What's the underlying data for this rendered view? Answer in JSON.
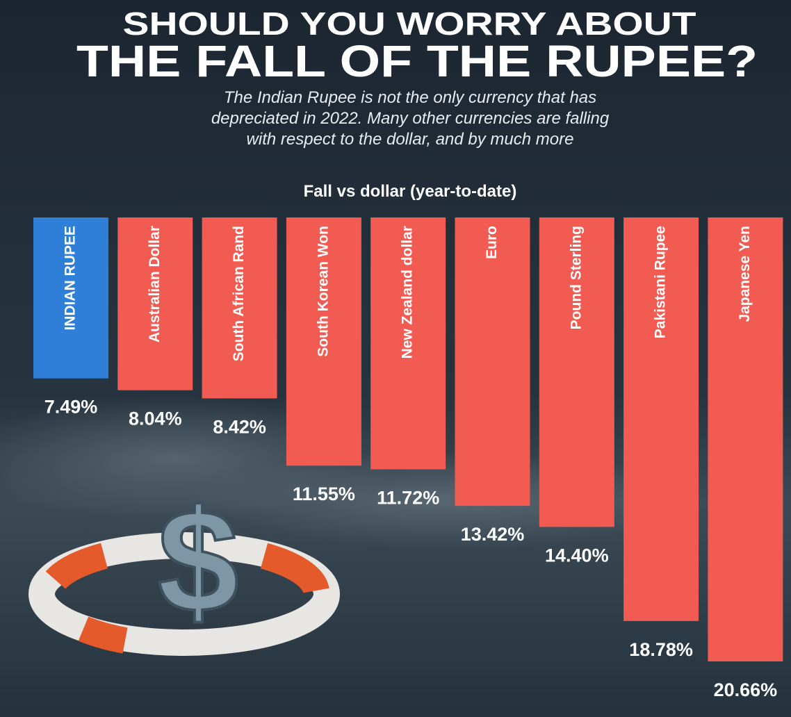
{
  "chart_data": {
    "type": "bar",
    "title": [
      "SHOULD YOU WORRY ABOUT",
      "THE FALL OF THE RUPEE?"
    ],
    "description": [
      "The Indian Rupee is not the only currency that has",
      "depreciated in 2022. Many other currencies are falling",
      "with respect to the dollar, and by much more"
    ],
    "ylabel": "Fall vs dollar (year-to-date)",
    "categories": [
      "INDIAN RUPEE",
      "Australian Dollar",
      "South African Rand",
      "South Korean Won",
      "New Zealand dollar",
      "Euro",
      "Pound Sterling",
      "Pakistani Rupee",
      "Japanese Yen"
    ],
    "values": [
      7.49,
      8.04,
      8.42,
      11.55,
      11.72,
      13.42,
      14.4,
      18.78,
      20.66
    ],
    "value_labels": [
      "7.49%",
      "8.04%",
      "8.42%",
      "11.55%",
      "11.72%",
      "13.42%",
      "14.40%",
      "18.78%",
      "20.66%"
    ],
    "colors": [
      "#2f7fd8",
      "#f25b52",
      "#f25b52",
      "#f25b52",
      "#f25b52",
      "#f25b52",
      "#f25b52",
      "#f25b52",
      "#f25b52"
    ]
  }
}
